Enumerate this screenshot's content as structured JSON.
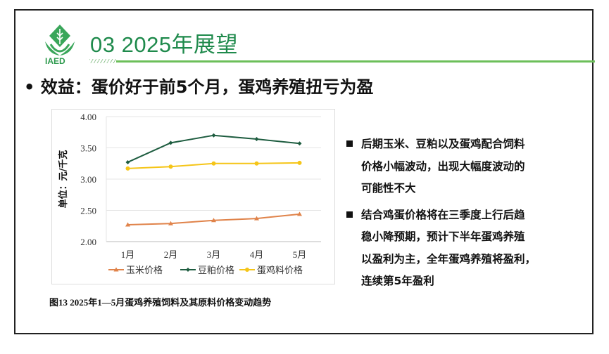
{
  "header": {
    "logo_text": "IAED",
    "title": "03  2025年展望"
  },
  "headline": "• 效益：蛋价好于前5个月，蛋鸡养殖扭亏为盈",
  "caption": "图13  2025年1—5月蛋鸡养殖饲料及其原料价格变动趋势",
  "points": [
    {
      "lines": [
        "后期玉米、豆粕以及蛋鸡配合饲料",
        "价格小幅波动，出现大幅度波动的",
        "可能性不大"
      ]
    },
    {
      "lines": [
        "结合鸡蛋价格将在三季度上行后趋",
        "稳小降预期，预计下半年蛋鸡养殖",
        "以盈利为主，全年蛋鸡养殖将盈利，",
        "连续第5年盈利"
      ]
    }
  ],
  "colors": {
    "brand_green": "#1f8a4c",
    "rule_green": "#6cbf5a"
  },
  "chart_data": {
    "type": "line",
    "title": "",
    "xlabel": "",
    "ylabel": "单位：元/千克",
    "categories": [
      "1月",
      "2月",
      "3月",
      "4月",
      "5月"
    ],
    "ylim": [
      2.0,
      4.0
    ],
    "yticks": [
      "2.00",
      "2.50",
      "3.00",
      "3.50",
      "4.00"
    ],
    "grid": true,
    "legend_position": "bottom",
    "series": [
      {
        "name": "玉米价格",
        "color": "#e0834a",
        "marker": "triangle",
        "values": [
          2.27,
          2.29,
          2.34,
          2.37,
          2.44
        ]
      },
      {
        "name": "豆粕价格",
        "color": "#1d5c3f",
        "marker": "diamond",
        "values": [
          3.27,
          3.58,
          3.7,
          3.64,
          3.57
        ]
      },
      {
        "name": "蛋鸡料价格",
        "color": "#f5c518",
        "marker": "circle",
        "values": [
          3.17,
          3.2,
          3.25,
          3.25,
          3.26
        ]
      }
    ]
  }
}
